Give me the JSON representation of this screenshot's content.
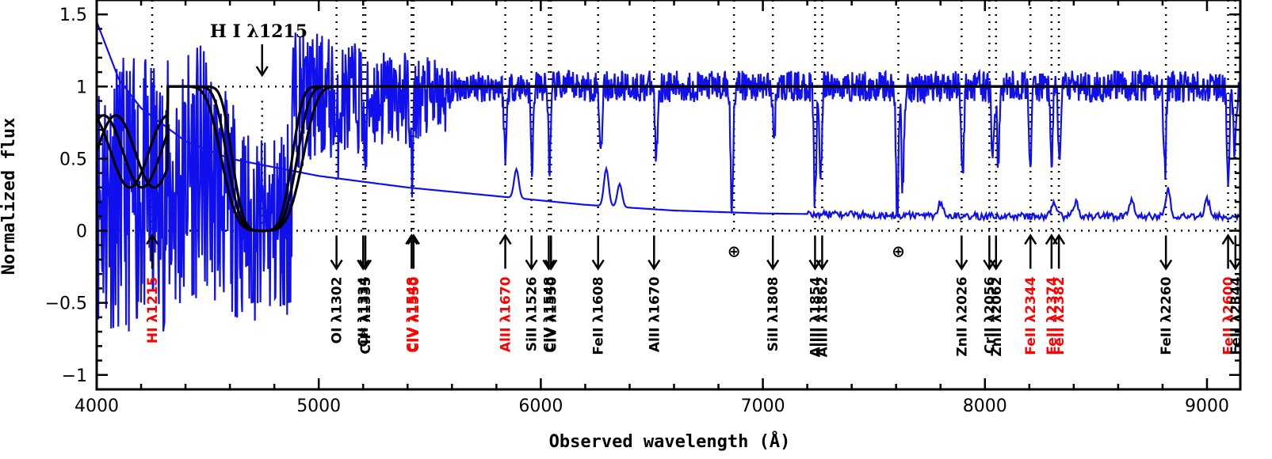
{
  "chart_data": {
    "type": "line",
    "xlabel": "Observed wavelength (Å)",
    "ylabel": "Normalized flux",
    "xlim": [
      4000,
      9150
    ],
    "ylim": [
      -1.1,
      1.6
    ],
    "xticks": [
      4000,
      5000,
      6000,
      7000,
      8000,
      9000
    ],
    "xtick_labels": [
      "4000",
      "5000",
      "6000",
      "7000",
      "8000",
      "9000"
    ],
    "yticks": [
      -1,
      -0.5,
      0,
      0.5,
      1,
      1.5
    ],
    "ytick_labels": [
      "−1",
      "−0.5",
      "0",
      "0.5",
      "1",
      "1.5"
    ],
    "reference_lines_y": [
      0,
      1
    ],
    "annotation": "H I λ1215",
    "annotation_wavelength": 4745,
    "dla_center": 4745,
    "dla_models": [
      {
        "width": 180
      },
      {
        "width": 210
      },
      {
        "width": 245
      }
    ],
    "colors": {
      "spectrum": "#1010ee",
      "model": "#000000",
      "strong_line": "#ff0000",
      "weak_line": "#000000",
      "axis": "#000000"
    },
    "spectrum_continuum": [
      [
        4000,
        1.45
      ],
      [
        4100,
        1.05
      ],
      [
        4200,
        0.85
      ],
      [
        4400,
        0.62
      ],
      [
        4600,
        0.5
      ],
      [
        4800,
        0.44
      ],
      [
        5000,
        0.38
      ],
      [
        5400,
        0.3
      ],
      [
        5800,
        0.24
      ],
      [
        6200,
        0.18
      ],
      [
        6600,
        0.14
      ],
      [
        7000,
        0.12
      ],
      [
        7500,
        0.11
      ],
      [
        8000,
        0.1
      ],
      [
        8500,
        0.1
      ],
      [
        9150,
        0.1
      ]
    ],
    "error_bumps": [
      [
        5890,
        0.3
      ],
      [
        6295,
        0.36
      ],
      [
        6355,
        0.26
      ],
      [
        7800,
        0.2
      ],
      [
        8310,
        0.2
      ],
      [
        8410,
        0.2
      ],
      [
        8660,
        0.22
      ],
      [
        8825,
        0.28
      ],
      [
        9000,
        0.22
      ]
    ],
    "absorption_features": [
      [
        5080,
        0.35
      ],
      [
        5210,
        0.45
      ],
      [
        5420,
        0.6
      ],
      [
        5840,
        0.5
      ],
      [
        5960,
        0.55
      ],
      [
        6040,
        0.55
      ],
      [
        6270,
        0.45
      ],
      [
        6520,
        0.5
      ],
      [
        6860,
        0.85
      ],
      [
        7050,
        0.35
      ],
      [
        7235,
        0.8
      ],
      [
        7260,
        0.6
      ],
      [
        7605,
        0.9
      ],
      [
        7630,
        0.7
      ],
      [
        7900,
        0.6
      ],
      [
        8035,
        0.55
      ],
      [
        8060,
        0.55
      ],
      [
        8205,
        0.55
      ],
      [
        8300,
        0.5
      ],
      [
        8335,
        0.5
      ],
      [
        8810,
        0.6
      ],
      [
        9095,
        0.75
      ],
      [
        9125,
        0.5
      ]
    ],
    "line_markers": [
      {
        "wavelength": 4250,
        "label": "HI λ1215",
        "color": "red",
        "arrow": "up"
      },
      {
        "wavelength": 5080,
        "label": "OI λ1302",
        "color": "black",
        "arrow": "down"
      },
      {
        "wavelength": 5200,
        "label": "CII λ1334",
        "color": "black",
        "arrow": "down"
      },
      {
        "wavelength": 5210,
        "label": "CII* λ1335",
        "color": "black",
        "arrow": "down"
      },
      {
        "wavelength": 5418,
        "label": "CIV λ1548",
        "color": "red",
        "arrow": "up"
      },
      {
        "wavelength": 5427,
        "label": "CIV λ1550",
        "color": "red",
        "arrow": "up"
      },
      {
        "wavelength": 5840,
        "label": "AlII λ1670",
        "color": "red",
        "arrow": "up"
      },
      {
        "wavelength": 5958,
        "label": "SiII λ1526",
        "color": "black",
        "arrow": "down"
      },
      {
        "wavelength": 6036,
        "label": "CIV λ1548",
        "color": "black",
        "arrow": "down"
      },
      {
        "wavelength": 6046,
        "label": "CIV λ1550",
        "color": "black",
        "arrow": "down"
      },
      {
        "wavelength": 6258,
        "label": "FeII λ1608",
        "color": "black",
        "arrow": "down"
      },
      {
        "wavelength": 6510,
        "label": "AlII λ1670",
        "color": "black",
        "arrow": "down"
      },
      {
        "wavelength": 7045,
        "label": "SiII λ1808",
        "color": "black",
        "arrow": "down"
      },
      {
        "wavelength": 7235,
        "label": "AlIII λ1854",
        "color": "black",
        "arrow": "down"
      },
      {
        "wavelength": 7267,
        "label": "AlIII λ1862",
        "color": "black",
        "arrow": "down"
      },
      {
        "wavelength": 7895,
        "label": "ZnII λ2026",
        "color": "black",
        "arrow": "down"
      },
      {
        "wavelength": 8020,
        "label": "CrII λ2056",
        "color": "black",
        "arrow": "down"
      },
      {
        "wavelength": 8050,
        "label": "ZnII λ2062",
        "color": "black",
        "arrow": "down"
      },
      {
        "wavelength": 8205,
        "label": "FeII λ2344",
        "color": "red",
        "arrow": "up"
      },
      {
        "wavelength": 8300,
        "label": "FeII λ2374",
        "color": "red",
        "arrow": "up"
      },
      {
        "wavelength": 8333,
        "label": "FeII λ2382",
        "color": "red",
        "arrow": "up"
      },
      {
        "wavelength": 8815,
        "label": "FeII λ2260",
        "color": "black",
        "arrow": "down"
      },
      {
        "wavelength": 9095,
        "label": "FeII λ2600",
        "color": "red",
        "arrow": "up"
      },
      {
        "wavelength": 9128,
        "label": "FeII λ2344",
        "color": "black",
        "arrow": "down"
      }
    ],
    "telluric_markers": [
      {
        "wavelength": 6870,
        "label": "⊕"
      },
      {
        "wavelength": 7610,
        "label": "⊕"
      }
    ]
  }
}
